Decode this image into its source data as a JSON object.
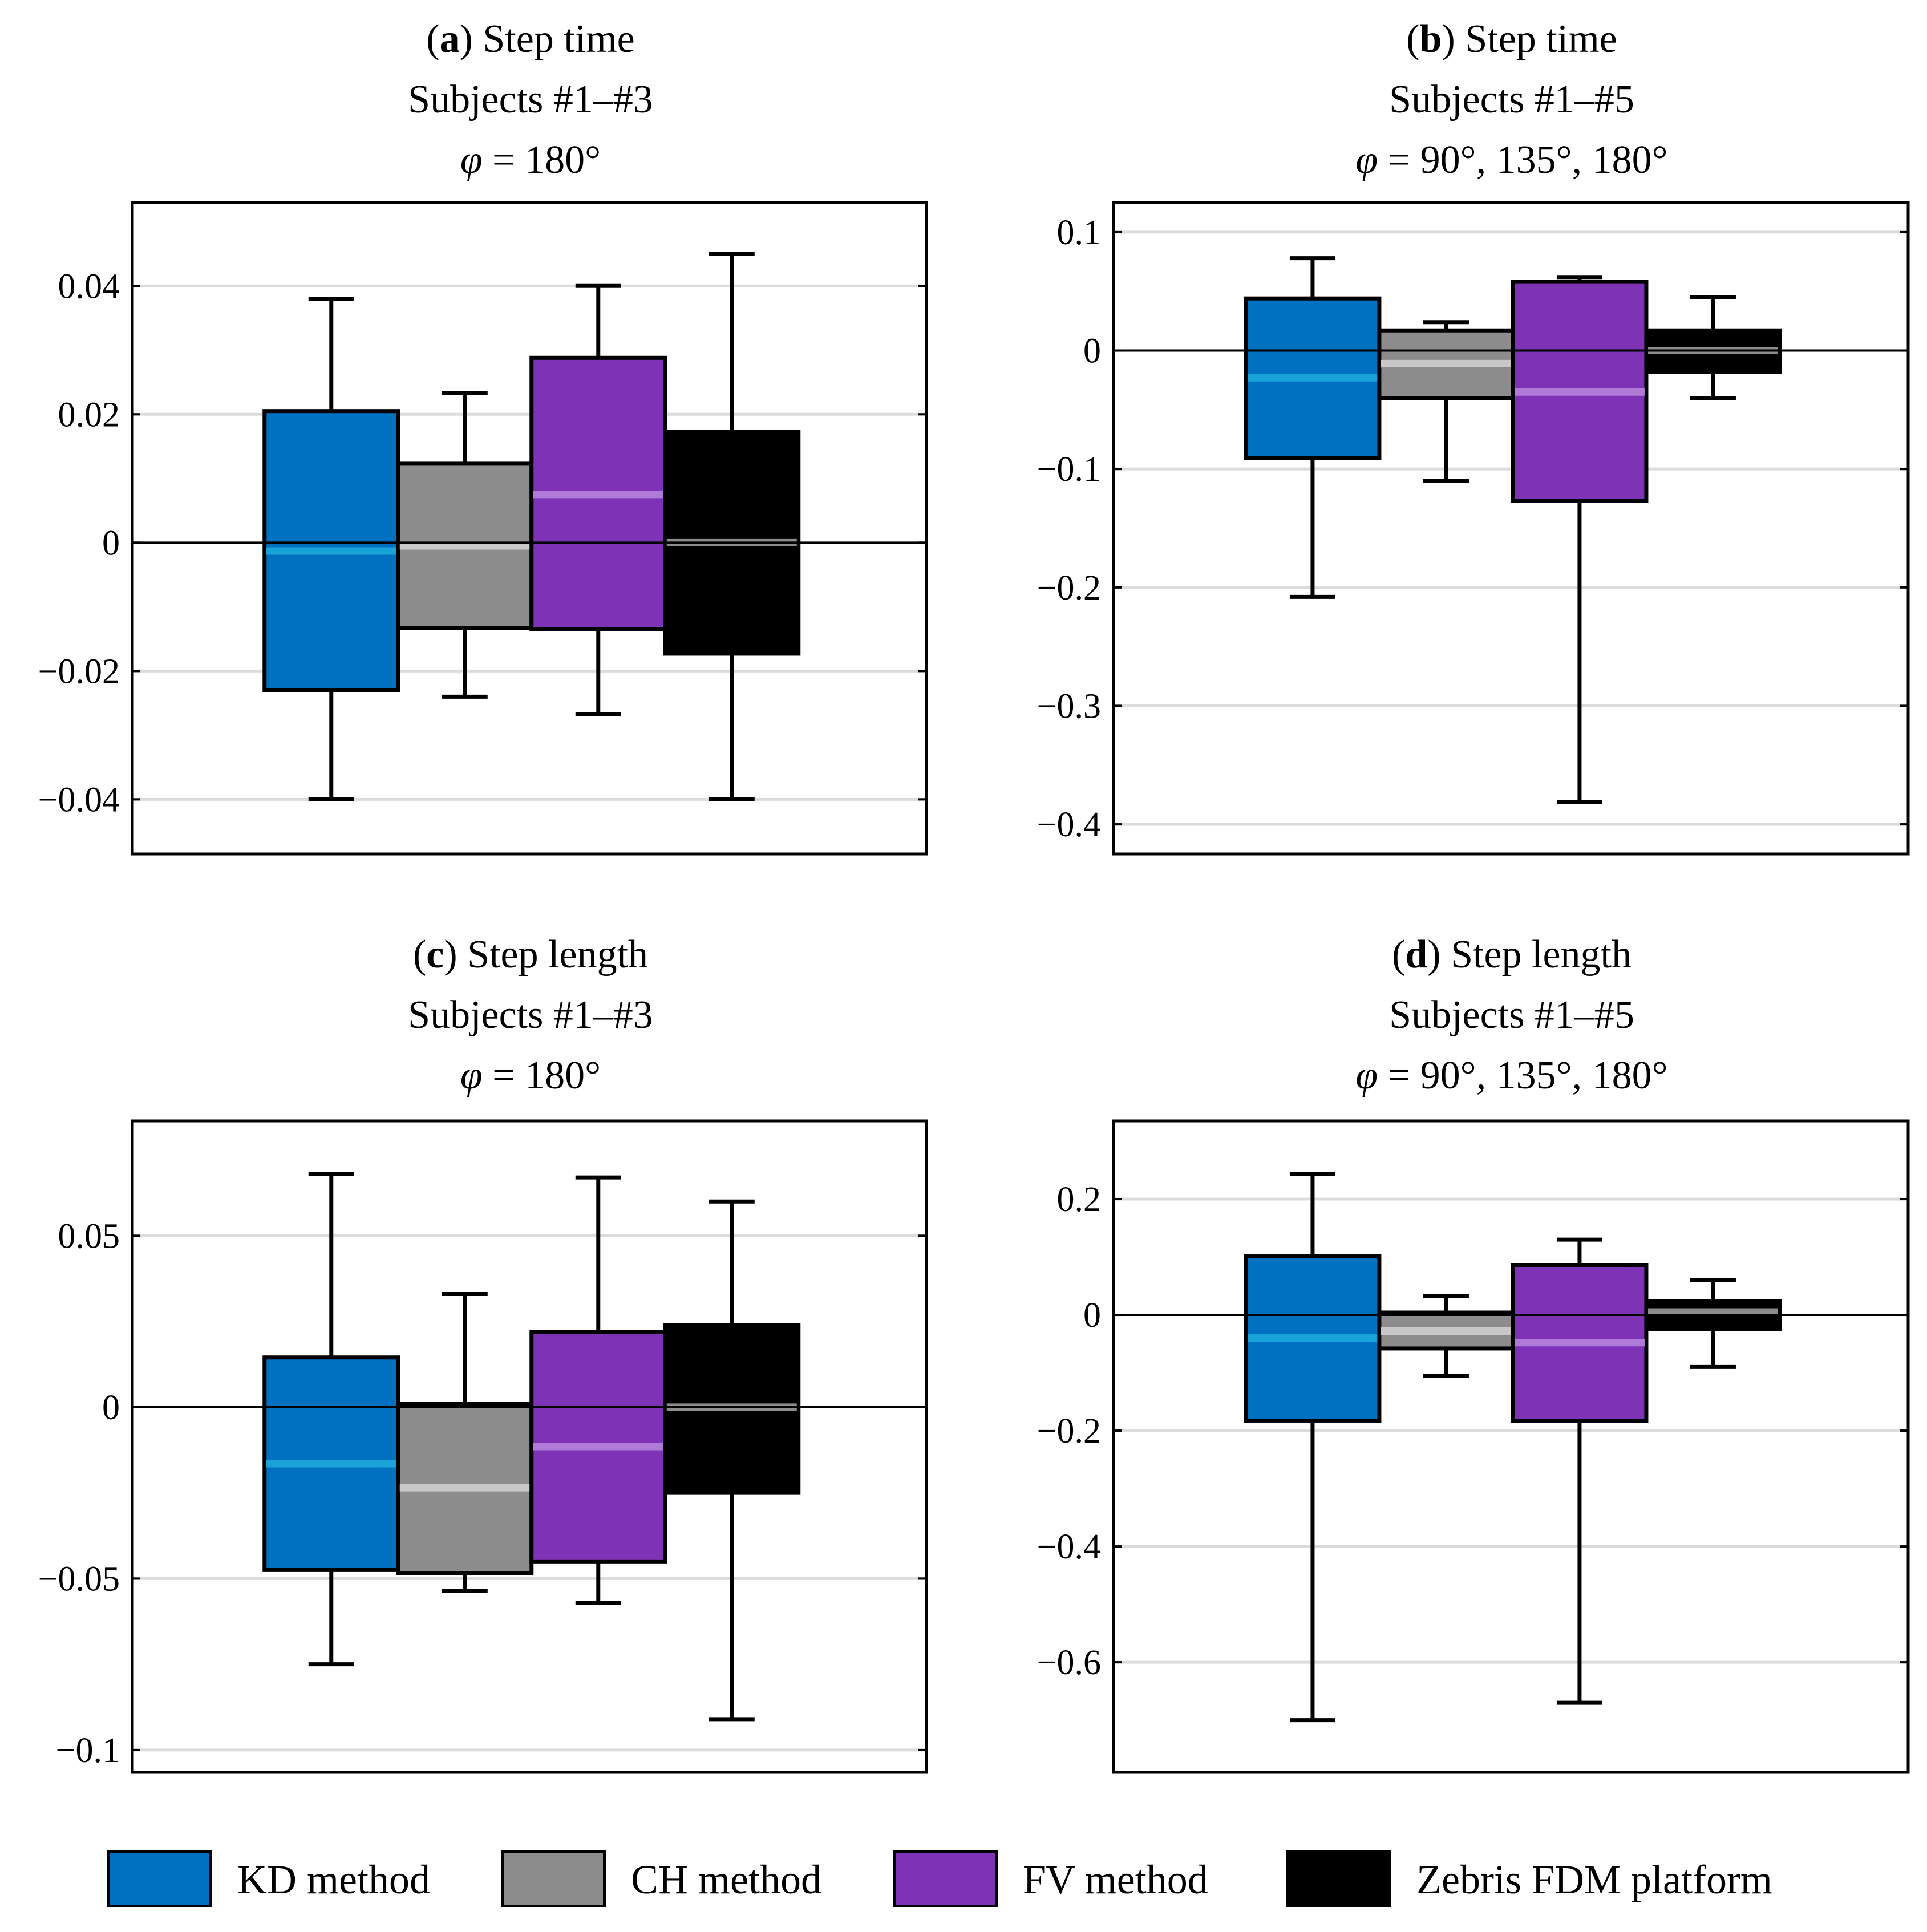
{
  "series_styles": [
    {
      "name": "KD method",
      "fill": "#0070c0",
      "median": "#1aa3d9"
    },
    {
      "name": "CH method",
      "fill": "#8c8c8c",
      "median": "#c8c8c8"
    },
    {
      "name": "FV method",
      "fill": "#7e33b6",
      "median": "#b07ad9"
    },
    {
      "name": "Zebris FDM platform",
      "fill": "#000000",
      "median": "#8c8c8c"
    }
  ],
  "legend": {
    "items": [
      {
        "label": "KD method",
        "color": "#0070c0"
      },
      {
        "label": "CH method",
        "color": "#8c8c8c"
      },
      {
        "label": "FV method",
        "color": "#7e33b6"
      },
      {
        "label": "Zebris FDM platform",
        "color": "#000000"
      }
    ]
  },
  "panels": [
    {
      "letter": "a",
      "metric": "Step time",
      "subjects": "Subjects #1–#3",
      "phi_symbol": "φ",
      "phi_value": " = 180°"
    },
    {
      "letter": "b",
      "metric": "Step time",
      "subjects": "Subjects #1–#5",
      "phi_symbol": "φ",
      "phi_value": " = 90°, 135°, 180°"
    },
    {
      "letter": "c",
      "metric": "Step length",
      "subjects": "Subjects #1–#3",
      "phi_symbol": "φ",
      "phi_value": " = 180°"
    },
    {
      "letter": "d",
      "metric": "Step length",
      "subjects": "Subjects #1–#5",
      "phi_symbol": "φ",
      "phi_value": " = 90°, 135°, 180°"
    }
  ],
  "chart_data": [
    {
      "type": "box",
      "title": "(a) Step time Subjects #1–#3 φ = 180°",
      "xlabel": "",
      "ylabel": "",
      "ylim": [
        -0.0485,
        0.053
      ],
      "yticks": [
        0.04,
        0.02,
        0,
        -0.02,
        -0.04
      ],
      "ytick_labels": [
        "0.04",
        "0.02",
        "0",
        "−0.02",
        "−0.04"
      ],
      "grid": true,
      "series": [
        {
          "name": "KD method",
          "whisker_low": -0.04,
          "q1": -0.023,
          "median": -0.0013,
          "q3": 0.0205,
          "whisker_high": 0.038
        },
        {
          "name": "CH method",
          "whisker_low": -0.024,
          "q1": -0.0133,
          "median": -0.0005,
          "q3": 0.0123,
          "whisker_high": 0.0233
        },
        {
          "name": "FV method",
          "whisker_low": -0.0267,
          "q1": -0.0135,
          "median": 0.0075,
          "q3": 0.0288,
          "whisker_high": 0.04
        },
        {
          "name": "Zebris FDM platform",
          "whisker_low": -0.04,
          "q1": -0.0173,
          "median": 0.0,
          "q3": 0.0173,
          "whisker_high": 0.045
        }
      ]
    },
    {
      "type": "box",
      "title": "(b) Step time Subjects #1–#5 φ = 90°, 135°, 180°",
      "xlabel": "",
      "ylabel": "",
      "ylim": [
        -0.425,
        0.125
      ],
      "yticks": [
        0.1,
        0,
        -0.1,
        -0.2,
        -0.3,
        -0.4
      ],
      "ytick_labels": [
        "0.1",
        "0",
        "−0.1",
        "−0.2",
        "−0.3",
        "−0.4"
      ],
      "grid": true,
      "series": [
        {
          "name": "KD method",
          "whisker_low": -0.208,
          "q1": -0.091,
          "median": -0.023,
          "q3": 0.044,
          "whisker_high": 0.078
        },
        {
          "name": "CH method",
          "whisker_low": -0.11,
          "q1": -0.04,
          "median": -0.011,
          "q3": 0.017,
          "whisker_high": 0.024
        },
        {
          "name": "FV method",
          "whisker_low": -0.381,
          "q1": -0.127,
          "median": -0.035,
          "q3": 0.058,
          "whisker_high": 0.062
        },
        {
          "name": "Zebris FDM platform",
          "whisker_low": -0.04,
          "q1": -0.018,
          "median": 0.0,
          "q3": 0.017,
          "whisker_high": 0.045
        }
      ]
    },
    {
      "type": "box",
      "title": "(c) Step length Subjects #1–#3 φ = 180°",
      "xlabel": "",
      "ylabel": "",
      "ylim": [
        -0.1065,
        0.0835
      ],
      "yticks": [
        0.05,
        0,
        -0.05,
        -0.1
      ],
      "ytick_labels": [
        "0.05",
        "0",
        "−0.05",
        "−0.1"
      ],
      "grid": true,
      "series": [
        {
          "name": "KD method",
          "whisker_low": -0.075,
          "q1": -0.0475,
          "median": -0.0165,
          "q3": 0.0145,
          "whisker_high": 0.068
        },
        {
          "name": "CH method",
          "whisker_low": -0.0535,
          "q1": -0.0485,
          "median": -0.0235,
          "q3": 0.001,
          "whisker_high": 0.033
        },
        {
          "name": "FV method",
          "whisker_low": -0.057,
          "q1": -0.045,
          "median": -0.0115,
          "q3": 0.022,
          "whisker_high": 0.067
        },
        {
          "name": "Zebris FDM platform",
          "whisker_low": -0.091,
          "q1": -0.025,
          "median": 0.0,
          "q3": 0.024,
          "whisker_high": 0.06
        }
      ]
    },
    {
      "type": "box",
      "title": "(d) Step length Subjects #1–#5 φ = 90°, 135°, 180°",
      "xlabel": "",
      "ylabel": "",
      "ylim": [
        -0.79,
        0.335
      ],
      "yticks": [
        0.2,
        0,
        -0.2,
        -0.4,
        -0.6
      ],
      "ytick_labels": [
        "0.2",
        "0",
        "−0.2",
        "−0.4",
        "−0.6"
      ],
      "grid": true,
      "series": [
        {
          "name": "KD method",
          "whisker_low": -0.7,
          "q1": -0.183,
          "median": -0.04,
          "q3": 0.101,
          "whisker_high": 0.243
        },
        {
          "name": "CH method",
          "whisker_low": -0.105,
          "q1": -0.058,
          "median": -0.028,
          "q3": 0.004,
          "whisker_high": 0.033
        },
        {
          "name": "FV method",
          "whisker_low": -0.67,
          "q1": -0.183,
          "median": -0.048,
          "q3": 0.086,
          "whisker_high": 0.13
        },
        {
          "name": "Zebris FDM platform",
          "whisker_low": -0.09,
          "q1": -0.025,
          "median": 0.005,
          "q3": 0.024,
          "whisker_high": 0.06
        }
      ]
    }
  ]
}
